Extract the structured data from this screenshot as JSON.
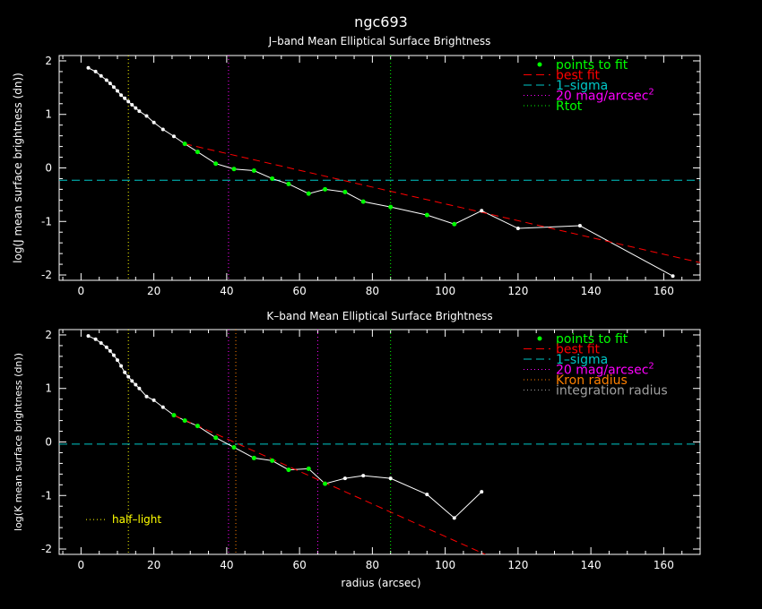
{
  "page": {
    "title": "ngc693",
    "xlabel": "radius (arcsec)"
  },
  "colors": {
    "background": "#000000",
    "axes": "#ffffff",
    "data_line": "#ffffff",
    "fit_points": "#00ff00",
    "best_fit": "#ff0000",
    "sigma": "#00c8c8",
    "mag20": "#ff00ff",
    "rtot": "#00ff00",
    "kron": "#ff8000",
    "integration": "#a0a0a0",
    "half_light": "#ffff00"
  },
  "chart_data": [
    {
      "type": "line",
      "title": "J–band Mean Elliptical Surface Brightness",
      "xlabel": "",
      "ylabel": "log(J mean surface brightness (dn))",
      "xlim": [
        -6,
        170
      ],
      "ylim": [
        -2.1,
        2.1
      ],
      "xticks": [
        0,
        20,
        40,
        60,
        80,
        100,
        120,
        140,
        160
      ],
      "yticks": [
        -2,
        -1,
        0,
        1,
        2
      ],
      "grid": false,
      "legend_position": "top-right",
      "legend": [
        {
          "label": "points to fit",
          "style": "dot",
          "color_key": "fit_points"
        },
        {
          "label": "best fit",
          "style": "dash",
          "color_key": "best_fit"
        },
        {
          "label": "1–sigma",
          "style": "dash",
          "color_key": "sigma"
        },
        {
          "label": "20 mag/arcsec",
          "sup": "2",
          "style": "dot-line",
          "color_key": "mag20"
        },
        {
          "label": "Rtot",
          "style": "dot-line",
          "color_key": "rtot"
        }
      ],
      "profile": {
        "x": [
          2,
          4,
          5.5,
          7,
          8,
          9,
          10,
          11,
          12,
          13,
          14,
          15,
          16,
          18,
          20,
          22.5,
          25.5,
          28.5,
          32,
          37,
          42,
          47.5,
          52.5,
          57,
          62.5,
          67,
          72.5,
          77.5,
          85,
          95,
          102.5,
          110,
          120,
          137,
          162.5
        ],
        "y": [
          1.87,
          1.8,
          1.72,
          1.64,
          1.58,
          1.51,
          1.44,
          1.36,
          1.3,
          1.24,
          1.18,
          1.12,
          1.06,
          0.97,
          0.85,
          0.72,
          0.59,
          0.45,
          0.3,
          0.08,
          -0.02,
          -0.05,
          -0.2,
          -0.3,
          -0.48,
          -0.4,
          -0.45,
          -0.63,
          -0.73,
          -0.88,
          -1.05,
          -0.8,
          -1.13,
          -1.08,
          -2.02
        ]
      },
      "fit_points": {
        "x": [
          28.5,
          32,
          37,
          42,
          47.5,
          52.5,
          57,
          62.5,
          67,
          72.5,
          77.5,
          85,
          95,
          102.5
        ],
        "y": [
          0.45,
          0.3,
          0.08,
          -0.02,
          -0.05,
          -0.2,
          -0.3,
          -0.48,
          -0.4,
          -0.45,
          -0.63,
          -0.73,
          -0.88,
          -1.05
        ]
      },
      "best_fit": {
        "x": [
          28.5,
          170
        ],
        "y": [
          0.45,
          -1.77
        ]
      },
      "hlines": [
        {
          "y": -0.23,
          "color_key": "sigma",
          "style": "dash"
        }
      ],
      "vlines": [
        {
          "x": 13,
          "color_key": "half_light"
        },
        {
          "x": 40.5,
          "color_key": "mag20"
        },
        {
          "x": 85,
          "color_key": "rtot"
        }
      ]
    },
    {
      "type": "line",
      "title": "K–band Mean Elliptical Surface Brightness",
      "xlabel": "radius (arcsec)",
      "ylabel": "log(K mean surface brightness (dn))",
      "xlim": [
        -6,
        170
      ],
      "ylim": [
        -2.1,
        2.1
      ],
      "xticks": [
        0,
        20,
        40,
        60,
        80,
        100,
        120,
        140,
        160
      ],
      "yticks": [
        -2,
        -1,
        0,
        1,
        2
      ],
      "grid": false,
      "legend_position": "top-right",
      "legend": [
        {
          "label": "points to fit",
          "style": "dot",
          "color_key": "fit_points"
        },
        {
          "label": "best fit",
          "style": "dash",
          "color_key": "best_fit"
        },
        {
          "label": "1–sigma",
          "style": "dash",
          "color_key": "sigma"
        },
        {
          "label": "20 mag/arcsec",
          "sup": "2",
          "style": "dot-line",
          "color_key": "mag20"
        },
        {
          "label": "Kron radius",
          "style": "dot-line",
          "color_key": "kron"
        },
        {
          "label": "integration radius",
          "style": "dot-line",
          "color_key": "integration"
        }
      ],
      "annotation": {
        "label": "half–light",
        "color_key": "half_light"
      },
      "profile": {
        "x": [
          2,
          4,
          5.5,
          7,
          8,
          9,
          10,
          11,
          12,
          13,
          14,
          15,
          16,
          18,
          20,
          22.5,
          25.5,
          28.5,
          32,
          37,
          42,
          47.5,
          52.5,
          57,
          62.5,
          67,
          72.5,
          77.5,
          85,
          95,
          102.5,
          110
        ],
        "y": [
          1.98,
          1.92,
          1.85,
          1.77,
          1.7,
          1.62,
          1.53,
          1.42,
          1.3,
          1.22,
          1.14,
          1.07,
          1.0,
          0.85,
          0.78,
          0.65,
          0.5,
          0.4,
          0.3,
          0.08,
          -0.1,
          -0.3,
          -0.35,
          -0.52,
          -0.5,
          -0.78,
          -0.68,
          -0.63,
          -0.68,
          -0.98,
          -1.42,
          -0.93
        ]
      },
      "fit_points": {
        "x": [
          25.5,
          28.5,
          32,
          37,
          42,
          47.5,
          52.5,
          57,
          62.5,
          67
        ],
        "y": [
          0.5,
          0.4,
          0.3,
          0.08,
          -0.1,
          -0.3,
          -0.35,
          -0.52,
          -0.5,
          -0.78
        ]
      },
      "best_fit": {
        "x": [
          25.5,
          111
        ],
        "y": [
          0.5,
          -2.1
        ]
      },
      "hlines": [
        {
          "y": -0.04,
          "color_key": "sigma",
          "style": "dash"
        }
      ],
      "vlines": [
        {
          "x": 13,
          "color_key": "half_light"
        },
        {
          "x": 40.5,
          "color_key": "mag20"
        },
        {
          "x": 42.5,
          "color_key": "kron"
        },
        {
          "x": 65,
          "color_key": "mag20"
        },
        {
          "x": 85,
          "color_key": "rtot"
        }
      ]
    }
  ]
}
